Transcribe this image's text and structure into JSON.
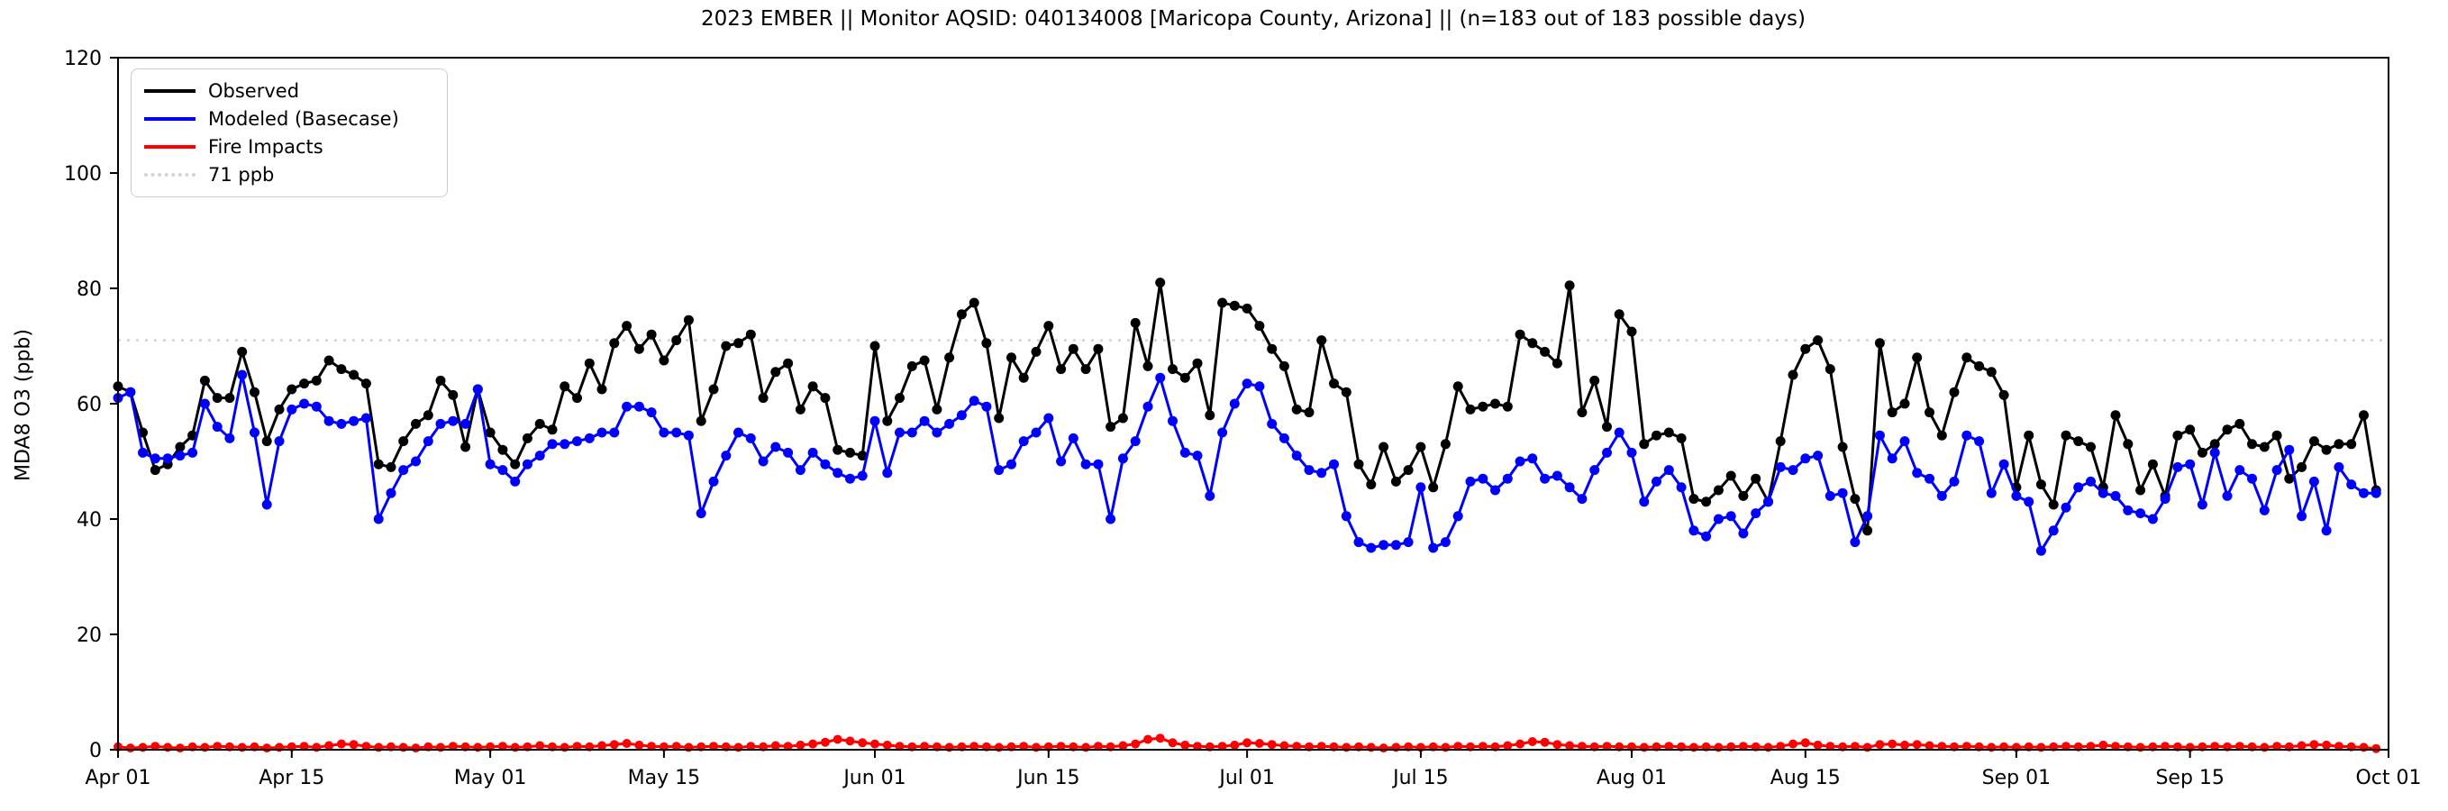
{
  "title": "2023 EMBER || Monitor AQSID: 040134008 [Maricopa County, Arizona] || (n=183 out of 183 possible days)",
  "y_axis": {
    "label": "MDA8 O3 (ppb)"
  },
  "legend": {
    "observed": "Observed",
    "modeled": "Modeled (Basecase)",
    "fire": "Fire Impacts",
    "threshold": "71 ppb"
  },
  "chart_data": {
    "type": "line",
    "title": "2023 EMBER || Monitor AQSID: 040134008 [Maricopa County, Arizona] || (n=183 out of 183 possible days)",
    "xlabel": "",
    "ylabel": "MDA8 O3 (ppb)",
    "ylim": [
      0,
      120
    ],
    "y_ticks": [
      0,
      20,
      40,
      60,
      80,
      100,
      120
    ],
    "x_tick_labels": [
      "Apr 01",
      "Apr 15",
      "May 01",
      "May 15",
      "Jun 01",
      "Jun 15",
      "Jul 01",
      "Jul 15",
      "Aug 01",
      "Aug 15",
      "Sep 01",
      "Sep 15",
      "Oct 01"
    ],
    "x_tick_days": [
      0,
      14,
      30,
      44,
      61,
      75,
      91,
      105,
      122,
      136,
      153,
      167,
      183
    ],
    "n_days": 183,
    "grid": false,
    "legend_position": "upper left",
    "threshold_line": {
      "value": 71,
      "label": "71 ppb",
      "color": "#d3d3d3",
      "style": "dotted"
    },
    "series": [
      {
        "name": "Observed",
        "color": "#000000",
        "marker": "circle",
        "values": [
          63,
          62,
          55,
          48.5,
          49.5,
          52.5,
          54.5,
          64,
          61,
          61,
          69,
          62,
          53.5,
          59,
          62.5,
          63.5,
          64,
          67.5,
          66,
          65,
          63.5,
          49.5,
          49,
          53.5,
          56.5,
          58,
          64,
          61.5,
          52.5,
          62.5,
          55,
          52,
          49.5,
          54,
          56.5,
          55.5,
          63,
          61,
          67,
          62.5,
          70.5,
          73.5,
          69.5,
          72,
          67.5,
          71,
          74.5,
          57,
          62.5,
          70,
          70.5,
          72,
          61,
          65.5,
          67,
          59,
          63,
          61,
          52,
          51.5,
          51,
          70,
          57,
          61,
          66.5,
          67.5,
          59,
          68,
          75.5,
          77.5,
          70.5,
          57.5,
          68,
          64.5,
          69,
          73.5,
          66,
          69.5,
          66,
          69.5,
          56,
          57.5,
          74,
          66.5,
          81,
          66,
          64.5,
          67,
          58,
          77.5,
          77,
          76.5,
          73.5,
          69.5,
          66.5,
          59,
          58.5,
          71,
          63.5,
          62,
          49.5,
          46,
          52.5,
          46.5,
          48.5,
          52.5,
          45.5,
          53,
          63,
          59,
          59.5,
          60,
          59.5,
          72,
          70.5,
          69,
          67,
          80.5,
          58.5,
          64,
          56,
          75.5,
          72.5,
          53,
          54.5,
          55,
          54,
          43.5,
          43,
          45,
          47.5,
          44,
          47,
          43,
          53.5,
          65,
          69.5,
          71,
          66,
          52.5,
          43.5,
          38,
          70.5,
          58.5,
          60,
          68,
          58.5,
          54.5,
          62,
          68,
          66.5,
          65.5,
          61.5,
          45.5,
          54.5,
          46,
          42.5,
          54.5,
          53.5,
          52.5,
          45.5,
          58,
          53,
          45,
          49.5,
          44,
          54.5,
          55.5,
          51.5,
          53,
          55.5,
          56.5,
          53,
          52.5,
          54.5,
          47,
          49,
          53.5,
          52,
          53,
          53,
          58,
          45
        ]
      },
      {
        "name": "Modeled (Basecase)",
        "color": "#0000ff",
        "marker": "circle",
        "values": [
          61,
          62,
          51.5,
          50.5,
          50.5,
          51,
          51.5,
          60,
          56,
          54,
          65,
          55,
          42.5,
          53.5,
          59,
          60,
          59.5,
          57,
          56.5,
          57,
          57.5,
          40,
          44.5,
          48.5,
          50,
          53.5,
          56.5,
          57,
          56.5,
          62.5,
          49.5,
          48.5,
          46.5,
          49.5,
          51,
          53,
          53,
          53.5,
          54,
          55,
          55,
          59.5,
          59.5,
          58.5,
          55,
          55,
          54.5,
          41,
          46.5,
          51,
          55,
          54,
          50,
          52.5,
          51.5,
          48.5,
          51.5,
          49.5,
          48,
          47,
          47.5,
          57,
          48,
          55,
          55,
          57,
          55,
          56.5,
          58,
          60.5,
          59.5,
          48.5,
          49.5,
          53.5,
          55,
          57.5,
          50,
          54,
          49.5,
          49.5,
          40,
          50.5,
          53.5,
          59.5,
          64.5,
          57,
          51.5,
          51,
          44,
          55,
          60,
          63.5,
          63,
          56.5,
          54,
          51,
          48.5,
          48,
          49.5,
          40.5,
          36,
          35,
          35.5,
          35.5,
          36,
          45.5,
          35,
          36,
          40.5,
          46.5,
          47,
          45,
          47,
          50,
          50.5,
          47,
          47.5,
          45.5,
          43.5,
          48.5,
          51.5,
          55,
          51.5,
          43,
          46.5,
          48.5,
          45.5,
          38,
          37,
          40,
          40.5,
          37.5,
          41,
          43,
          49,
          48.5,
          50.5,
          51,
          44,
          44.5,
          36,
          40.5,
          54.5,
          50.5,
          53.5,
          48,
          47,
          44,
          46.5,
          54.5,
          53.5,
          44.5,
          49.5,
          44,
          43,
          34.5,
          38,
          42,
          45.5,
          46.5,
          44.5,
          44,
          41.5,
          41,
          40,
          43.5,
          49,
          49.5,
          42.5,
          51.5,
          44,
          48.5,
          47,
          41.5,
          48.5,
          52,
          40.5,
          46.5,
          38,
          49,
          46,
          44.5,
          44.5
        ]
      },
      {
        "name": "Fire Impacts",
        "color": "#ff0000",
        "marker": "circle",
        "values": [
          0.5,
          0.3,
          0.4,
          0.6,
          0.4,
          0.3,
          0.5,
          0.4,
          0.6,
          0.5,
          0.4,
          0.5,
          0.3,
          0.4,
          0.5,
          0.6,
          0.4,
          0.7,
          1.0,
          0.9,
          0.6,
          0.4,
          0.5,
          0.4,
          0.3,
          0.5,
          0.4,
          0.6,
          0.5,
          0.4,
          0.5,
          0.6,
          0.4,
          0.5,
          0.7,
          0.5,
          0.4,
          0.6,
          0.5,
          0.7,
          0.9,
          1.1,
          0.8,
          0.6,
          0.5,
          0.6,
          0.4,
          0.5,
          0.6,
          0.5,
          0.4,
          0.6,
          0.5,
          0.7,
          0.6,
          0.8,
          1.0,
          1.3,
          1.8,
          1.5,
          1.2,
          1.0,
          0.8,
          0.6,
          0.5,
          0.6,
          0.5,
          0.4,
          0.5,
          0.6,
          0.5,
          0.4,
          0.5,
          0.6,
          0.4,
          0.5,
          0.6,
          0.5,
          0.4,
          0.6,
          0.5,
          0.7,
          1.0,
          1.8,
          2.0,
          1.2,
          0.8,
          0.6,
          0.5,
          0.6,
          0.8,
          1.2,
          1.1,
          0.9,
          0.7,
          0.6,
          0.5,
          0.6,
          0.5,
          0.4,
          0.5,
          0.4,
          0.3,
          0.4,
          0.5,
          0.4,
          0.5,
          0.4,
          0.6,
          0.5,
          0.6,
          0.5,
          0.7,
          1.0,
          1.4,
          1.3,
          0.9,
          0.7,
          0.6,
          0.5,
          0.6,
          0.5,
          0.5,
          0.4,
          0.5,
          0.6,
          0.5,
          0.4,
          0.5,
          0.4,
          0.5,
          0.6,
          0.5,
          0.4,
          0.6,
          1.0,
          1.2,
          0.8,
          0.6,
          0.5,
          0.6,
          0.4,
          0.9,
          1.0,
          0.8,
          0.9,
          0.7,
          0.6,
          0.5,
          0.6,
          0.5,
          0.4,
          0.5,
          0.4,
          0.5,
          0.4,
          0.5,
          0.6,
          0.5,
          0.6,
          0.8,
          0.6,
          0.5,
          0.4,
          0.5,
          0.6,
          0.5,
          0.4,
          0.5,
          0.6,
          0.5,
          0.6,
          0.5,
          0.4,
          0.6,
          0.5,
          0.7,
          0.9,
          0.8,
          0.6,
          0.5,
          0.4,
          0.2
        ]
      }
    ]
  }
}
